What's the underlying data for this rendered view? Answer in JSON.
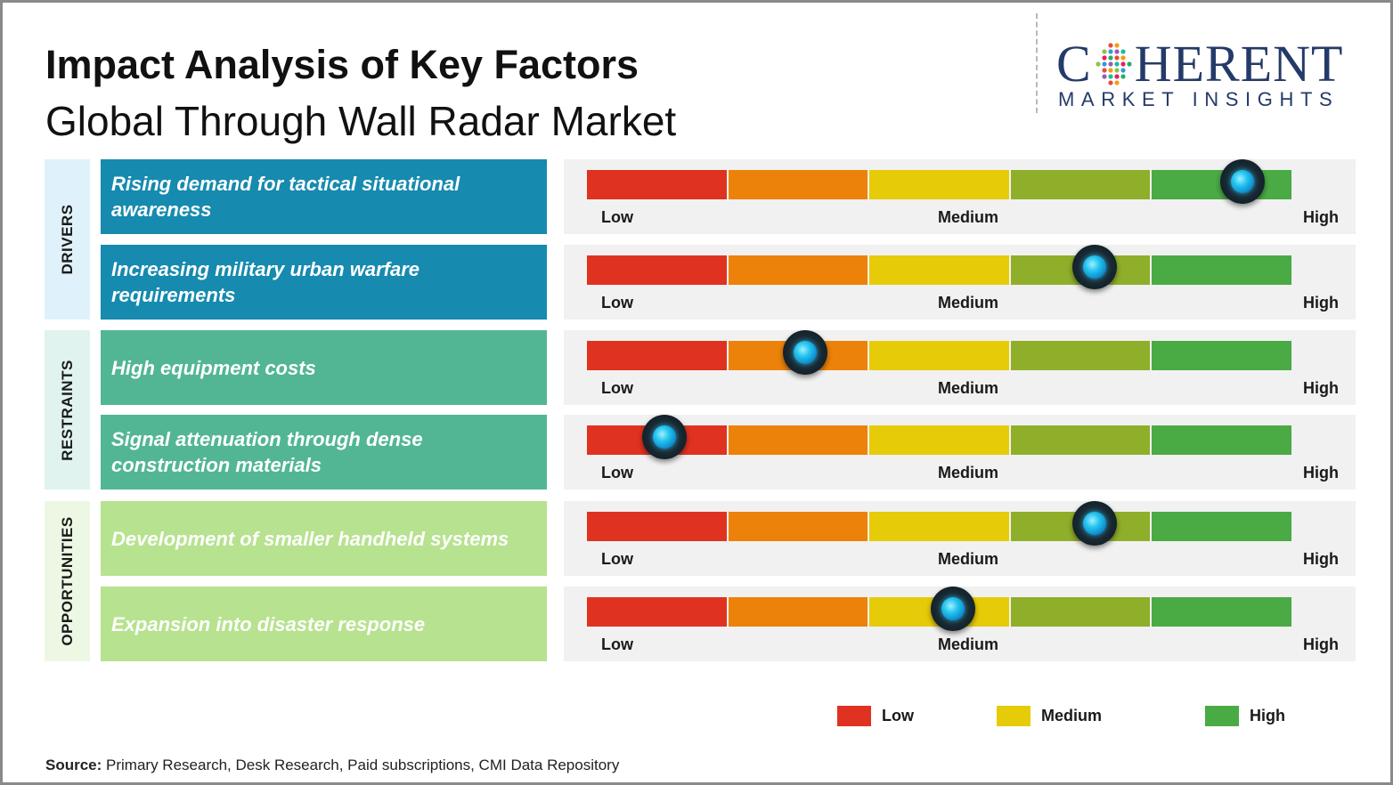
{
  "header": {
    "title": "Impact Analysis of Key Factors",
    "subtitle": "Global Through Wall Radar Market"
  },
  "logo": {
    "main_first": "C",
    "main_rest": "HERENT",
    "sub": "MARKET INSIGHTS",
    "color": "#243a68"
  },
  "chart_data": {
    "type": "impact-scale",
    "scale_segments": [
      {
        "color": "#e03220"
      },
      {
        "color": "#ec8209"
      },
      {
        "color": "#e6cb08"
      },
      {
        "color": "#8fae2a"
      },
      {
        "color": "#4aaa44"
      }
    ],
    "tick_labels": {
      "low": "Low",
      "medium": "Medium",
      "high": "High"
    },
    "categories": [
      {
        "label": "DRIVERS",
        "bg": "#dff1fb",
        "factor_bg": "#168aaf"
      },
      {
        "label": "RESTRAINTS",
        "bg": "#e0f3ee",
        "factor_bg": "#52b695"
      },
      {
        "label": "OPPORTUNITIES",
        "bg": "#ecf8e4",
        "factor_bg": "#b7e28f"
      }
    ],
    "factors": [
      {
        "category": 0,
        "text": "Rising demand for tactical situational awareness",
        "impact": 0.93
      },
      {
        "category": 0,
        "text": "Increasing military urban warfare requirements",
        "impact": 0.72
      },
      {
        "category": 1,
        "text": "High equipment costs",
        "impact": 0.31
      },
      {
        "category": 1,
        "text": "Signal attenuation through dense construction materials",
        "impact": 0.11
      },
      {
        "category": 2,
        "text": "Development of smaller handheld systems",
        "impact": 0.72
      },
      {
        "category": 2,
        "text": "Expansion into disaster response",
        "impact": 0.52
      }
    ],
    "legend": [
      {
        "label": "Low",
        "color": "#e03220"
      },
      {
        "label": "Medium",
        "color": "#e6cb08"
      },
      {
        "label": "High",
        "color": "#4aaa44"
      }
    ]
  },
  "footer": {
    "source_label": "Source:",
    "source_text": " Primary Research, Desk Research, Paid subscriptions, CMI Data Repository"
  }
}
